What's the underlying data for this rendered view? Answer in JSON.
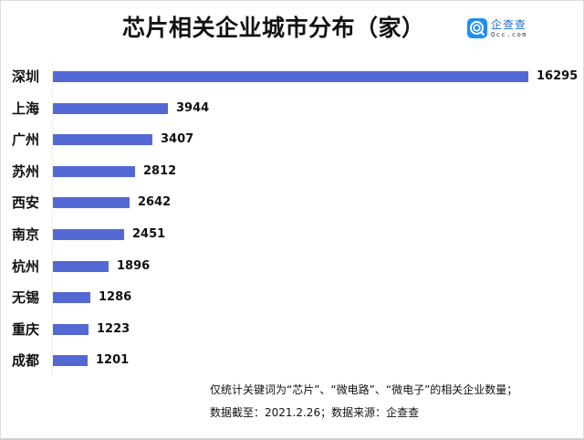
{
  "header": {
    "title": "芯片相关企业城市分布（家）",
    "logo": {
      "icon": "qcc-search-icon",
      "name_cn": "企查查",
      "name_en": "Qcc.com",
      "color": "#1f8ef1"
    }
  },
  "colors": {
    "bar": "#5468d4",
    "text": "#111111",
    "background": "#ffffff"
  },
  "chart_data": {
    "type": "bar",
    "orientation": "horizontal",
    "title": "芯片相关企业城市分布（家）",
    "xlabel": "",
    "ylabel": "",
    "grid": false,
    "legend": null,
    "categories": [
      "深圳",
      "上海",
      "广州",
      "苏州",
      "西安",
      "南京",
      "杭州",
      "无锡",
      "重庆",
      "成都"
    ],
    "values": [
      16295,
      3944,
      3407,
      2812,
      2642,
      2451,
      1896,
      1286,
      1223,
      1201
    ],
    "value_labels": [
      "16295",
      "3944",
      "3407",
      "2812",
      "2642",
      "2451",
      "1896",
      "1286",
      "1223",
      "1201"
    ],
    "xlim": [
      0,
      16295
    ],
    "unit": "家"
  },
  "footer": {
    "note_line1": "仅统计关键词为“芯片”、“微电路”、“微电子”的相关企业数量；",
    "note_line2": "数据截至：2021.2.26；数据来源：企查查"
  }
}
